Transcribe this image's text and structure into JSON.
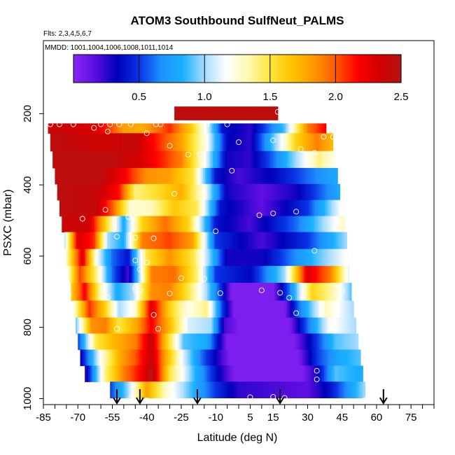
{
  "chart_data": {
    "type": "heatmap",
    "title": "ATOM3 Southbound SulfNeut_PALMS",
    "flights_label": "Flts: 2,3,4,5,6,7",
    "mmdd_label": "MMDD: 1001,1004,1006,1008,1011,1014",
    "xlabel": "Latitude (deg N)",
    "ylabel": "PSXC (mbar)",
    "xlim": [
      -85,
      85
    ],
    "ylim": [
      1020,
      0
    ],
    "x_ticks": [
      "-85",
      "-70",
      "-55",
      "-40",
      "-25",
      "-10",
      "5",
      "15",
      "30",
      "45",
      "60",
      "75"
    ],
    "x_tick_values": [
      -85,
      -70,
      -55,
      -40,
      -25,
      -10,
      5,
      15,
      30,
      45,
      60,
      75
    ],
    "y_ticks": [
      "200",
      "400",
      "600",
      "800",
      "1000"
    ],
    "y_tick_values": [
      200,
      400,
      600,
      800,
      1000
    ],
    "colorbar": {
      "range": [
        0,
        2.5
      ],
      "ticks": [
        "0.5",
        "1.0",
        "1.5",
        "2.0",
        "2.5"
      ],
      "tick_values": [
        0.5,
        1.0,
        1.5,
        2.0,
        2.5
      ],
      "colors": [
        "#8b27f5",
        "#5a0de0",
        "#0000b8",
        "#0a32e6",
        "#1e90ff",
        "#1ab0ff",
        "#a8dcff",
        "#ffffff",
        "#fff8b0",
        "#ffe63c",
        "#ffc400",
        "#ff9600",
        "#ff5a00",
        "#ff0000",
        "#d20000",
        "#b41414"
      ]
    },
    "band_pressures": [
      205,
      230,
      280,
      330,
      375,
      420,
      465,
      510,
      555,
      605,
      650,
      700,
      750,
      795,
      840,
      885,
      930,
      975
    ],
    "band_left_lat": [
      -28,
      -83,
      -82,
      -81,
      -80,
      -79,
      -78,
      -77,
      -76,
      -75,
      -74,
      -73,
      -72,
      -71,
      -70,
      -69,
      -67,
      -56
    ],
    "band_right_lat": [
      17,
      38,
      41,
      42,
      43,
      44,
      45,
      46,
      47,
      48,
      48,
      49,
      50,
      51,
      52,
      53,
      54,
      55
    ],
    "arrow_latitudes": [
      -53,
      -43,
      -18,
      18,
      63
    ],
    "value_field": [
      {
        "pressure": 205,
        "nodes": [
          [
            -28,
            2.45
          ],
          [
            17,
            2.45
          ]
        ]
      },
      {
        "pressure": 230,
        "nodes": [
          [
            -83,
            2.4
          ],
          [
            -62,
            2.3
          ],
          [
            -50,
            1.8
          ],
          [
            -42,
            1.75
          ],
          [
            -30,
            2.1
          ],
          [
            -20,
            1.6
          ],
          [
            -13,
            1.05
          ],
          [
            -7,
            0.4
          ],
          [
            5,
            0.25
          ],
          [
            20,
            0.9
          ],
          [
            30,
            1.9
          ],
          [
            38,
            2.2
          ]
        ]
      },
      {
        "pressure": 280,
        "nodes": [
          [
            -82,
            2.45
          ],
          [
            -60,
            2.35
          ],
          [
            -45,
            2.4
          ],
          [
            -35,
            2.1
          ],
          [
            -25,
            1.8
          ],
          [
            -14,
            1.2
          ],
          [
            -5,
            0.35
          ],
          [
            5,
            0.25
          ],
          [
            15,
            0.9
          ],
          [
            25,
            1.6
          ],
          [
            34,
            1.9
          ],
          [
            41,
            1.7
          ]
        ]
      },
      {
        "pressure": 330,
        "nodes": [
          [
            -81,
            2.45
          ],
          [
            -55,
            2.45
          ],
          [
            -42,
            2.3
          ],
          [
            -33,
            2.1
          ],
          [
            -25,
            1.9
          ],
          [
            -15,
            1.2
          ],
          [
            -5,
            0.3
          ],
          [
            5,
            0.25
          ],
          [
            15,
            0.6
          ],
          [
            25,
            1.0
          ],
          [
            35,
            1.4
          ],
          [
            42,
            1.2
          ]
        ]
      },
      {
        "pressure": 375,
        "nodes": [
          [
            -80,
            2.45
          ],
          [
            -60,
            2.45
          ],
          [
            -50,
            2.2
          ],
          [
            -40,
            1.85
          ],
          [
            -30,
            1.8
          ],
          [
            -20,
            1.5
          ],
          [
            -10,
            0.4
          ],
          [
            0,
            0.2
          ],
          [
            15,
            0.35
          ],
          [
            30,
            0.6
          ],
          [
            43,
            0.8
          ]
        ]
      },
      {
        "pressure": 420,
        "nodes": [
          [
            -79,
            2.45
          ],
          [
            -62,
            2.4
          ],
          [
            -52,
            2.15
          ],
          [
            -45,
            1.4
          ],
          [
            -35,
            1.55
          ],
          [
            -25,
            1.75
          ],
          [
            -15,
            1.2
          ],
          [
            -5,
            0.3
          ],
          [
            10,
            0.15
          ],
          [
            25,
            0.3
          ],
          [
            44,
            0.8
          ]
        ]
      },
      {
        "pressure": 465,
        "nodes": [
          [
            -78,
            2.45
          ],
          [
            -62,
            2.4
          ],
          [
            -55,
            2.0
          ],
          [
            -47,
            1.25
          ],
          [
            -38,
            1.3
          ],
          [
            -28,
            1.65
          ],
          [
            -18,
            1.45
          ],
          [
            -8,
            0.4
          ],
          [
            10,
            0.15
          ],
          [
            30,
            0.5
          ],
          [
            45,
            1.2
          ]
        ]
      },
      {
        "pressure": 510,
        "nodes": [
          [
            -77,
            2.4
          ],
          [
            -65,
            2.35
          ],
          [
            -57,
            1.5
          ],
          [
            -50,
            0.8
          ],
          [
            -42,
            1.6
          ],
          [
            -32,
            1.95
          ],
          [
            -22,
            1.6
          ],
          [
            -10,
            0.4
          ],
          [
            5,
            0.2
          ],
          [
            25,
            0.6
          ],
          [
            46,
            1.3
          ]
        ]
      },
      {
        "pressure": 555,
        "nodes": [
          [
            -76,
            1.0
          ],
          [
            -70,
            2.3
          ],
          [
            -63,
            2.1
          ],
          [
            -57,
            1.0
          ],
          [
            -50,
            0.8
          ],
          [
            -42,
            1.9
          ],
          [
            -30,
            2.05
          ],
          [
            -20,
            1.8
          ],
          [
            -10,
            0.5
          ],
          [
            10,
            0.2
          ],
          [
            30,
            0.5
          ],
          [
            47,
            1.0
          ]
        ]
      },
      {
        "pressure": 605,
        "nodes": [
          [
            -75,
            1.3
          ],
          [
            -68,
            2.3
          ],
          [
            -62,
            1.2
          ],
          [
            -55,
            0.6
          ],
          [
            -48,
            0.4
          ],
          [
            -40,
            1.5
          ],
          [
            -30,
            1.85
          ],
          [
            -20,
            1.5
          ],
          [
            -12,
            0.9
          ],
          [
            -5,
            0.3
          ],
          [
            10,
            0.3
          ],
          [
            30,
            0.8
          ],
          [
            48,
            1.2
          ]
        ]
      },
      {
        "pressure": 650,
        "nodes": [
          [
            -74,
            1.3
          ],
          [
            -69,
            2.05
          ],
          [
            -62,
            1.4
          ],
          [
            -55,
            0.6
          ],
          [
            -48,
            0.2
          ],
          [
            -38,
            1.9
          ],
          [
            -28,
            1.95
          ],
          [
            -18,
            1.4
          ],
          [
            -10,
            0.5
          ],
          [
            5,
            0.35
          ],
          [
            20,
            1.0
          ],
          [
            30,
            2.3
          ],
          [
            40,
            1.9
          ],
          [
            48,
            1.1
          ]
        ]
      },
      {
        "pressure": 700,
        "nodes": [
          [
            -73,
            1.6
          ],
          [
            -67,
            2.2
          ],
          [
            -60,
            1.3
          ],
          [
            -53,
            0.8
          ],
          [
            -46,
            1.0
          ],
          [
            -38,
            1.85
          ],
          [
            -30,
            1.9
          ],
          [
            -22,
            1.5
          ],
          [
            -14,
            1.0
          ],
          [
            -8,
            0.5
          ],
          [
            -3,
            0.05
          ],
          [
            15,
            0.05
          ],
          [
            22,
            0.6
          ],
          [
            32,
            1.6
          ],
          [
            42,
            1.3
          ],
          [
            49,
            0.9
          ]
        ]
      },
      {
        "pressure": 750,
        "nodes": [
          [
            -72,
            1.2
          ],
          [
            -65,
            2.1
          ],
          [
            -58,
            1.6
          ],
          [
            -52,
            1.0
          ],
          [
            -45,
            1.25
          ],
          [
            -38,
            2.3
          ],
          [
            -30,
            1.6
          ],
          [
            -22,
            1.2
          ],
          [
            -14,
            1.4
          ],
          [
            -7,
            0.5
          ],
          [
            -2,
            0.05
          ],
          [
            20,
            0.05
          ],
          [
            26,
            0.6
          ],
          [
            38,
            1.3
          ],
          [
            50,
            1.0
          ]
        ]
      },
      {
        "pressure": 795,
        "nodes": [
          [
            -71,
            0.9
          ],
          [
            -64,
            1.85
          ],
          [
            -58,
            1.9
          ],
          [
            -52,
            1.5
          ],
          [
            -44,
            1.8
          ],
          [
            -38,
            2.2
          ],
          [
            -30,
            1.7
          ],
          [
            -22,
            1.1
          ],
          [
            -12,
            1.0
          ],
          [
            -6,
            0.2
          ],
          [
            0,
            0.05
          ],
          [
            22,
            0.05
          ],
          [
            30,
            0.6
          ],
          [
            40,
            1.2
          ],
          [
            51,
            1.0
          ]
        ]
      },
      {
        "pressure": 840,
        "nodes": [
          [
            -70,
            0.5
          ],
          [
            -62,
            1.5
          ],
          [
            -55,
            1.7
          ],
          [
            -45,
            1.9
          ],
          [
            -38,
            2.4
          ],
          [
            -32,
            1.7
          ],
          [
            -24,
            0.9
          ],
          [
            -14,
            0.8
          ],
          [
            -5,
            0.05
          ],
          [
            24,
            0.05
          ],
          [
            32,
            0.4
          ],
          [
            42,
            0.9
          ],
          [
            52,
            1.0
          ]
        ]
      },
      {
        "pressure": 885,
        "nodes": [
          [
            -69,
            0.3
          ],
          [
            -60,
            1.2
          ],
          [
            -52,
            1.75
          ],
          [
            -45,
            2.0
          ],
          [
            -38,
            2.4
          ],
          [
            -32,
            1.8
          ],
          [
            -24,
            1.1
          ],
          [
            -16,
            0.6
          ],
          [
            -4,
            0.05
          ],
          [
            26,
            0.05
          ],
          [
            34,
            0.5
          ],
          [
            44,
            0.8
          ],
          [
            53,
            0.9
          ]
        ]
      },
      {
        "pressure": 930,
        "nodes": [
          [
            -67,
            0.2
          ],
          [
            -58,
            1.4
          ],
          [
            -50,
            1.9
          ],
          [
            -42,
            2.2
          ],
          [
            -38,
            2.5
          ],
          [
            -30,
            1.5
          ],
          [
            -20,
            0.9
          ],
          [
            -10,
            0.4
          ],
          [
            -2,
            0.05
          ],
          [
            28,
            0.05
          ],
          [
            34,
            0.3
          ],
          [
            42,
            0.9
          ],
          [
            54,
            0.8
          ]
        ]
      },
      {
        "pressure": 975,
        "nodes": [
          [
            -56,
            0.5
          ],
          [
            -48,
            1.0
          ],
          [
            -40,
            1.8
          ],
          [
            -32,
            1.3
          ],
          [
            -20,
            0.85
          ],
          [
            -10,
            0.5
          ],
          [
            0,
            0.25
          ],
          [
            15,
            0.2
          ],
          [
            30,
            0.15
          ],
          [
            40,
            0.4
          ],
          [
            55,
            1.0
          ]
        ]
      }
    ],
    "sample_points": [
      [
        17,
        195
      ],
      [
        -82,
        230
      ],
      [
        -78,
        230
      ],
      [
        -72,
        230
      ],
      [
        -60,
        230
      ],
      [
        -56,
        230
      ],
      [
        -52,
        230
      ],
      [
        -47,
        230
      ],
      [
        -36,
        230
      ],
      [
        -34,
        230
      ],
      [
        -14,
        230
      ],
      [
        -5,
        230
      ],
      [
        -63,
        240
      ],
      [
        -57,
        250
      ],
      [
        -40,
        255
      ],
      [
        -30,
        290
      ],
      [
        -22,
        315
      ],
      [
        -17,
        315
      ],
      [
        0,
        280
      ],
      [
        15,
        275
      ],
      [
        27,
        300
      ],
      [
        33,
        310
      ],
      [
        37,
        265
      ],
      [
        41,
        265
      ],
      [
        -3,
        360
      ],
      [
        -28,
        425
      ],
      [
        -58,
        470
      ],
      [
        -48,
        490
      ],
      [
        -68,
        495
      ],
      [
        9,
        485
      ],
      [
        15,
        480
      ],
      [
        25,
        475
      ],
      [
        45,
        480
      ],
      [
        -10,
        530
      ],
      [
        -53,
        545
      ],
      [
        -45,
        548
      ],
      [
        -37,
        550
      ],
      [
        33,
        585
      ],
      [
        -45,
        612
      ],
      [
        -40,
        618
      ],
      [
        -43,
        637
      ],
      [
        -25,
        662
      ],
      [
        -15,
        664
      ],
      [
        -45,
        687
      ],
      [
        -45,
        694
      ],
      [
        -43,
        697
      ],
      [
        -30,
        705
      ],
      [
        -8,
        704
      ],
      [
        10,
        696
      ],
      [
        18,
        703
      ],
      [
        22,
        717
      ],
      [
        28,
        713
      ],
      [
        45,
        700
      ],
      [
        -57,
        716
      ],
      [
        -37,
        765
      ],
      [
        -53,
        804
      ],
      [
        -35,
        804
      ],
      [
        25,
        760
      ],
      [
        -70,
        957
      ],
      [
        34,
        946
      ],
      [
        34,
        922
      ],
      [
        -52,
        1008
      ],
      [
        -47,
        1000
      ],
      [
        -40,
        1005
      ],
      [
        -28,
        1003
      ],
      [
        -19,
        1006
      ],
      [
        -5,
        1008
      ],
      [
        8,
        1009
      ],
      [
        5,
        996
      ],
      [
        15,
        995
      ],
      [
        20,
        998
      ],
      [
        35,
        1009
      ],
      [
        40,
        1008
      ],
      [
        45,
        1012
      ],
      [
        55,
        1004
      ]
    ]
  }
}
